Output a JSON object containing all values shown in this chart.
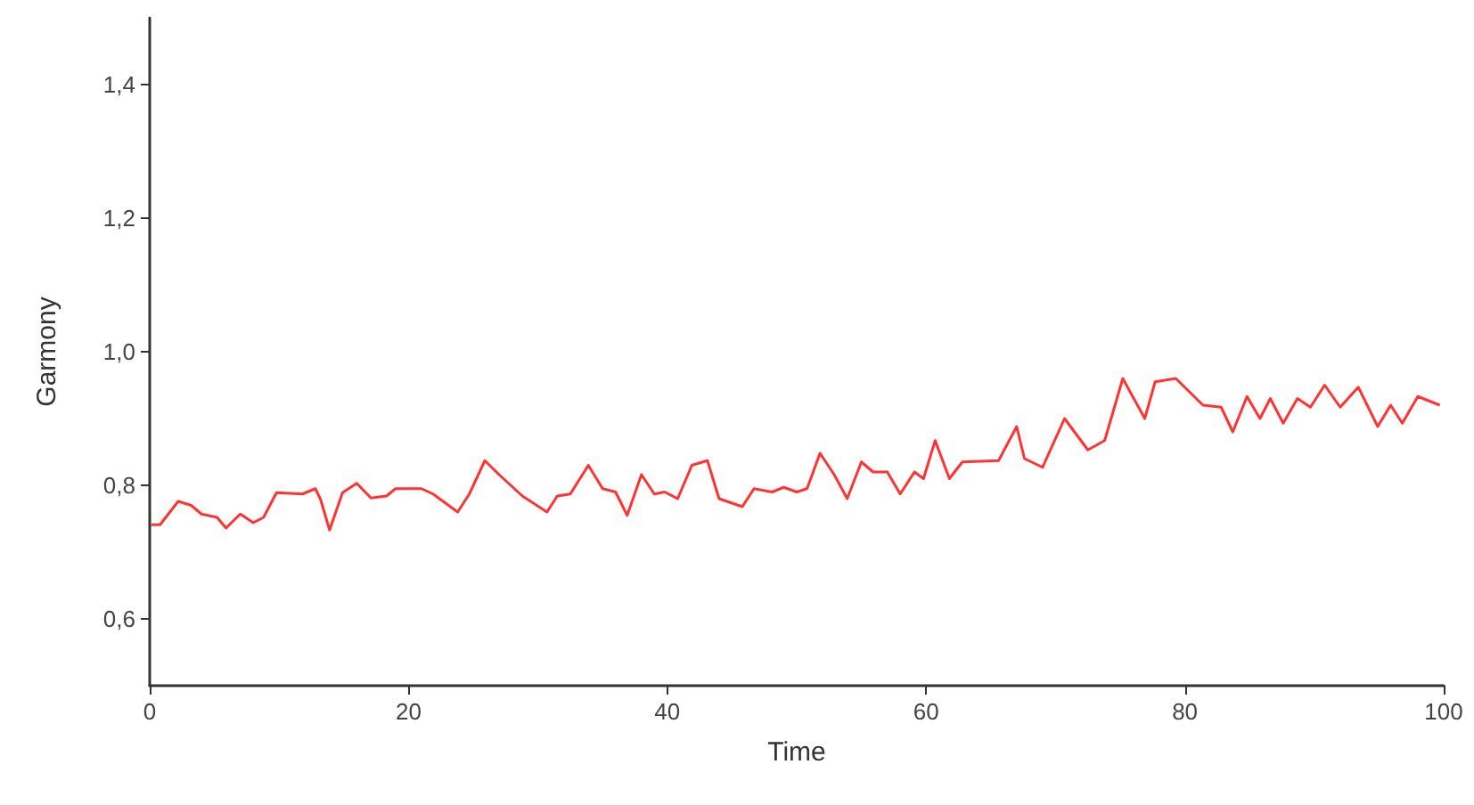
{
  "chart_data": {
    "type": "line",
    "xlabel": "Time",
    "ylabel": "Garmony",
    "xlim": [
      0,
      100
    ],
    "xticks": [
      0,
      20,
      40,
      60,
      80,
      100
    ],
    "ylim": [
      0.5,
      1.5
    ],
    "yticks": [
      {
        "value": 0.6,
        "label": "0,6"
      },
      {
        "value": 0.8,
        "label": "0,8"
      },
      {
        "value": 1.0,
        "label": "1,0"
      },
      {
        "value": 1.2,
        "label": "1,2"
      },
      {
        "value": 1.4,
        "label": "1,4"
      }
    ],
    "grid": false,
    "marker": "none",
    "series": [
      {
        "color": "#ff3333",
        "x": [
          0.1,
          0.8,
          2.2,
          3.2,
          4,
          5.2,
          5.9,
          7,
          8,
          8.8,
          9.8,
          11.8,
          12.8,
          13.2,
          13.9,
          14.9,
          16,
          17.1,
          18.3,
          19,
          21,
          21.9,
          23.8,
          24.7,
          25.9,
          27,
          28.8,
          30.7,
          31.5,
          32.5,
          33.9,
          35,
          36,
          36.9,
          38,
          39,
          39.8,
          40.8,
          41.9,
          43.1,
          44,
          45.8,
          46.7,
          48.1,
          49,
          50,
          50.8,
          51.8,
          52.9,
          53.9,
          55,
          55.9,
          57,
          58,
          59.1,
          59.8,
          60.7,
          61.8,
          62.8,
          65.6,
          67,
          67.6,
          69,
          70.7,
          72.5,
          73.8,
          75.2,
          76.9,
          77.7,
          79.3,
          81.4,
          82.8,
          83.7,
          84.8,
          85.8,
          86.6,
          87.6,
          88.7,
          89.7,
          90.8,
          92,
          93.4,
          94.9,
          95.9,
          96.8,
          98,
          99.7
        ],
        "values": [
          0.741,
          0.741,
          0.776,
          0.77,
          0.757,
          0.752,
          0.736,
          0.757,
          0.744,
          0.752,
          0.789,
          0.787,
          0.795,
          0.779,
          0.733,
          0.789,
          0.803,
          0.781,
          0.784,
          0.795,
          0.795,
          0.787,
          0.76,
          0.787,
          0.837,
          0.816,
          0.784,
          0.76,
          0.784,
          0.787,
          0.83,
          0.795,
          0.79,
          0.755,
          0.816,
          0.787,
          0.79,
          0.78,
          0.83,
          0.837,
          0.78,
          0.768,
          0.795,
          0.79,
          0.797,
          0.79,
          0.795,
          0.848,
          0.816,
          0.78,
          0.835,
          0.82,
          0.82,
          0.787,
          0.82,
          0.81,
          0.867,
          0.81,
          0.835,
          0.837,
          0.888,
          0.84,
          0.827,
          0.9,
          0.853,
          0.867,
          0.96,
          0.9,
          0.955,
          0.96,
          0.92,
          0.917,
          0.88,
          0.933,
          0.9,
          0.93,
          0.893,
          0.93,
          0.917,
          0.95,
          0.917,
          0.947,
          0.888,
          0.92,
          0.893,
          0.933,
          0.92
        ]
      }
    ]
  }
}
